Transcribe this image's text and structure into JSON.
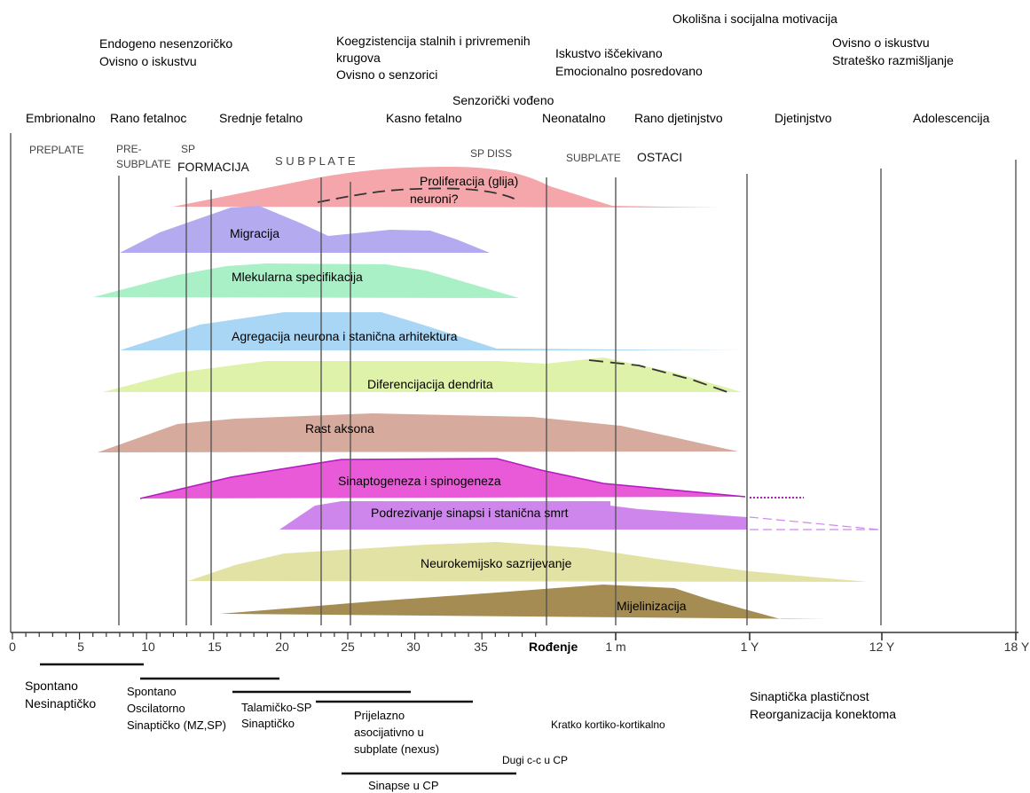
{
  "colors": {
    "proliferation": "#f4a6ab",
    "migration": "#b3aaf0",
    "molecular": "#a9f0c6",
    "aggregation": "#a9d6f4",
    "dendrite": "#dff2a9",
    "axon": "#d7aa9e",
    "synaptogenesis": "#e95ad8",
    "synaptogenesis_edge": "#b51cc0",
    "pruning": "#cf86ec",
    "neurochem": "#e3e2a5",
    "myelin": "#a48c52",
    "line": "#555555",
    "text": "#111111"
  },
  "top_notes": {
    "motivation": "Okolišna i socijalna motivacija",
    "endo1": "Endogeno nesenzoričko",
    "endo2": "Ovisno o iskustvu",
    "coex1": "Koegzistencija stalnih i privremenih",
    "coex2": "krugova",
    "coex3": "Ovisno o senzorici",
    "expect1": "Iskustvo iščekivano",
    "expect2": "Emocionalno posredovano",
    "exp1": "Ovisno o iskustvu",
    "exp2": "Strateško razmišljanje",
    "sensory": "Senzorički vođeno"
  },
  "periods": [
    "Embrionalno",
    "Rano fetalnoc",
    "Srednje fetalno",
    "Kasno fetalno",
    "Neonatalno",
    "Rano djetinjstvo",
    "Djetinjstvo",
    "Adolescencija"
  ],
  "subplate_labels": {
    "preplate": "PREPLATE",
    "pre1": "PRE-",
    "pre2": "SUBPLATE",
    "sp1": "SP",
    "sp2": "FORMACIJA",
    "subplate": "S U B P L A T E",
    "spdiss": "SP DISS",
    "subplate2": "SUBPLATE",
    "ostaci": "OSTACI"
  },
  "processes": {
    "proliferation": "Proliferacija (glija)",
    "neurons": "neuroni?",
    "migration": "Migracija",
    "molecular": "Mlekularna specifikacija",
    "aggregation": "Agregacija neurona i stanična arhitektura",
    "dendrite": "Diferencijacija dendrita",
    "axon": "Rast aksona",
    "synaptogenesis": "Sinaptogeneza i spinogeneza",
    "pruning": "Podrezivanje sinapsi i stanična smrt",
    "neurochem": "Neurokemijsko sazrijevanje",
    "myelin": "Mijelinizacija"
  },
  "axis": {
    "ticks": [
      "0",
      "5",
      "10",
      "15",
      "20",
      "25",
      "30",
      "35",
      "1 m",
      "1 Y",
      "12 Y",
      "18 Y"
    ],
    "birth": "Rođenje"
  },
  "bottom": {
    "spont1": "Spontano",
    "spont2": "Nesinaptičko",
    "osc1": "Spontano",
    "osc2": "Oscilatorno",
    "osc3": "Sinaptičko (MZ,SP)",
    "thal1": "Talamičko-SP",
    "thal2": "Sinaptičko",
    "trans1": "Prijelazno",
    "trans2": "asocijativno u",
    "trans3": "subplate (nexus)",
    "short": "Kratko kortiko-kortikalno",
    "long": "Dugi c-c u CP",
    "syncp": "Sinapse u CP",
    "plast1": "Sinaptička plastičnost",
    "plast2": "Reorganizacija konektoma"
  }
}
